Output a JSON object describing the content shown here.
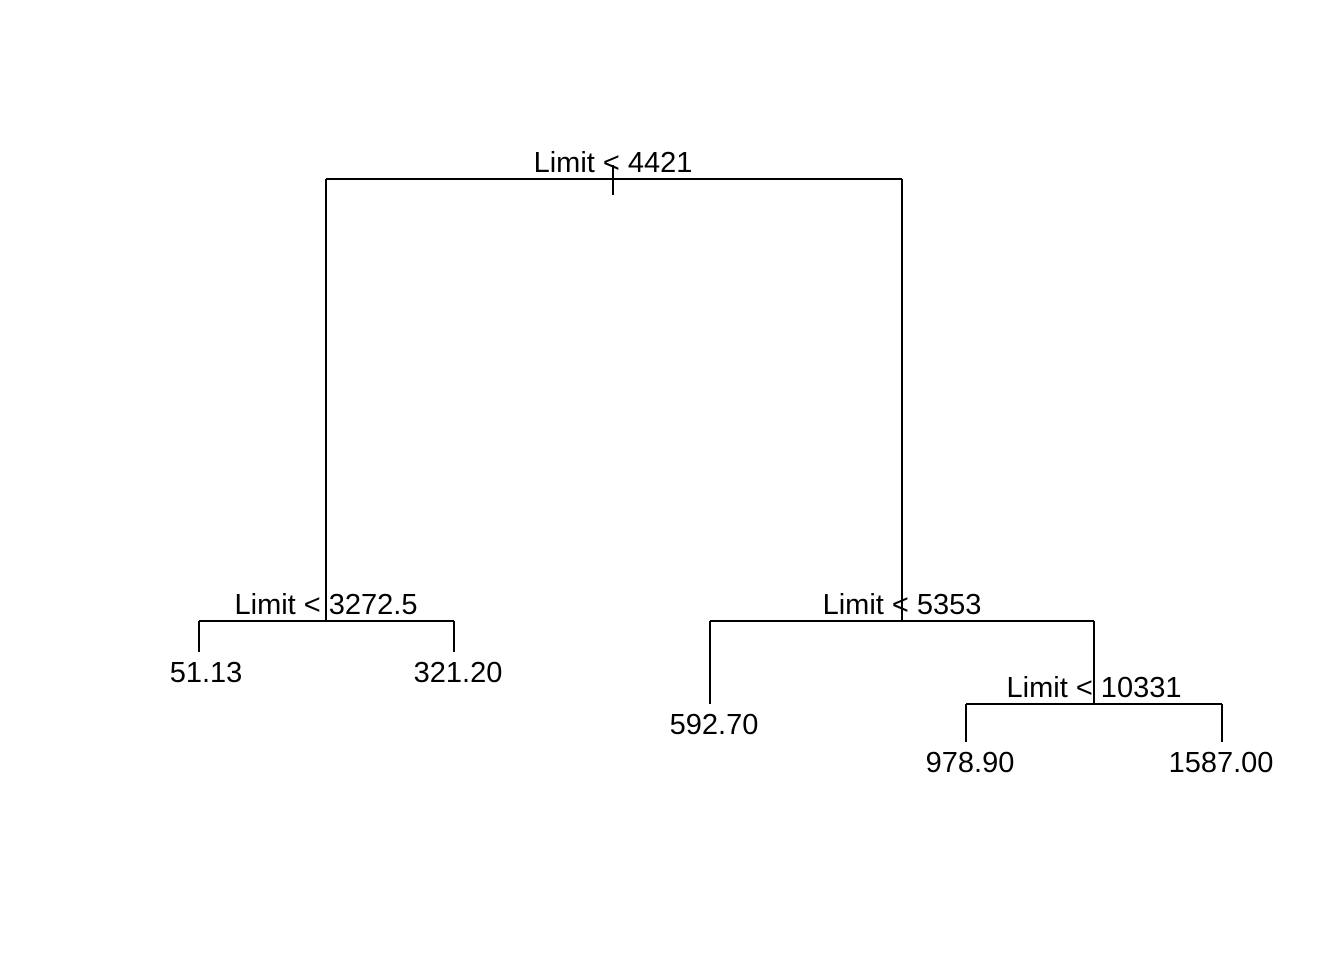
{
  "tree": {
    "root": {
      "label": "Limit < 4421",
      "left": {
        "label": "Limit < 3272.5",
        "left": {
          "leaf": "51.13"
        },
        "right": {
          "leaf": "321.20"
        }
      },
      "right": {
        "label": "Limit < 5353",
        "left": {
          "leaf": "592.70"
        },
        "right": {
          "label": "Limit < 10331",
          "left": {
            "leaf": "978.90"
          },
          "right": {
            "leaf": "1587.00"
          }
        }
      }
    }
  }
}
